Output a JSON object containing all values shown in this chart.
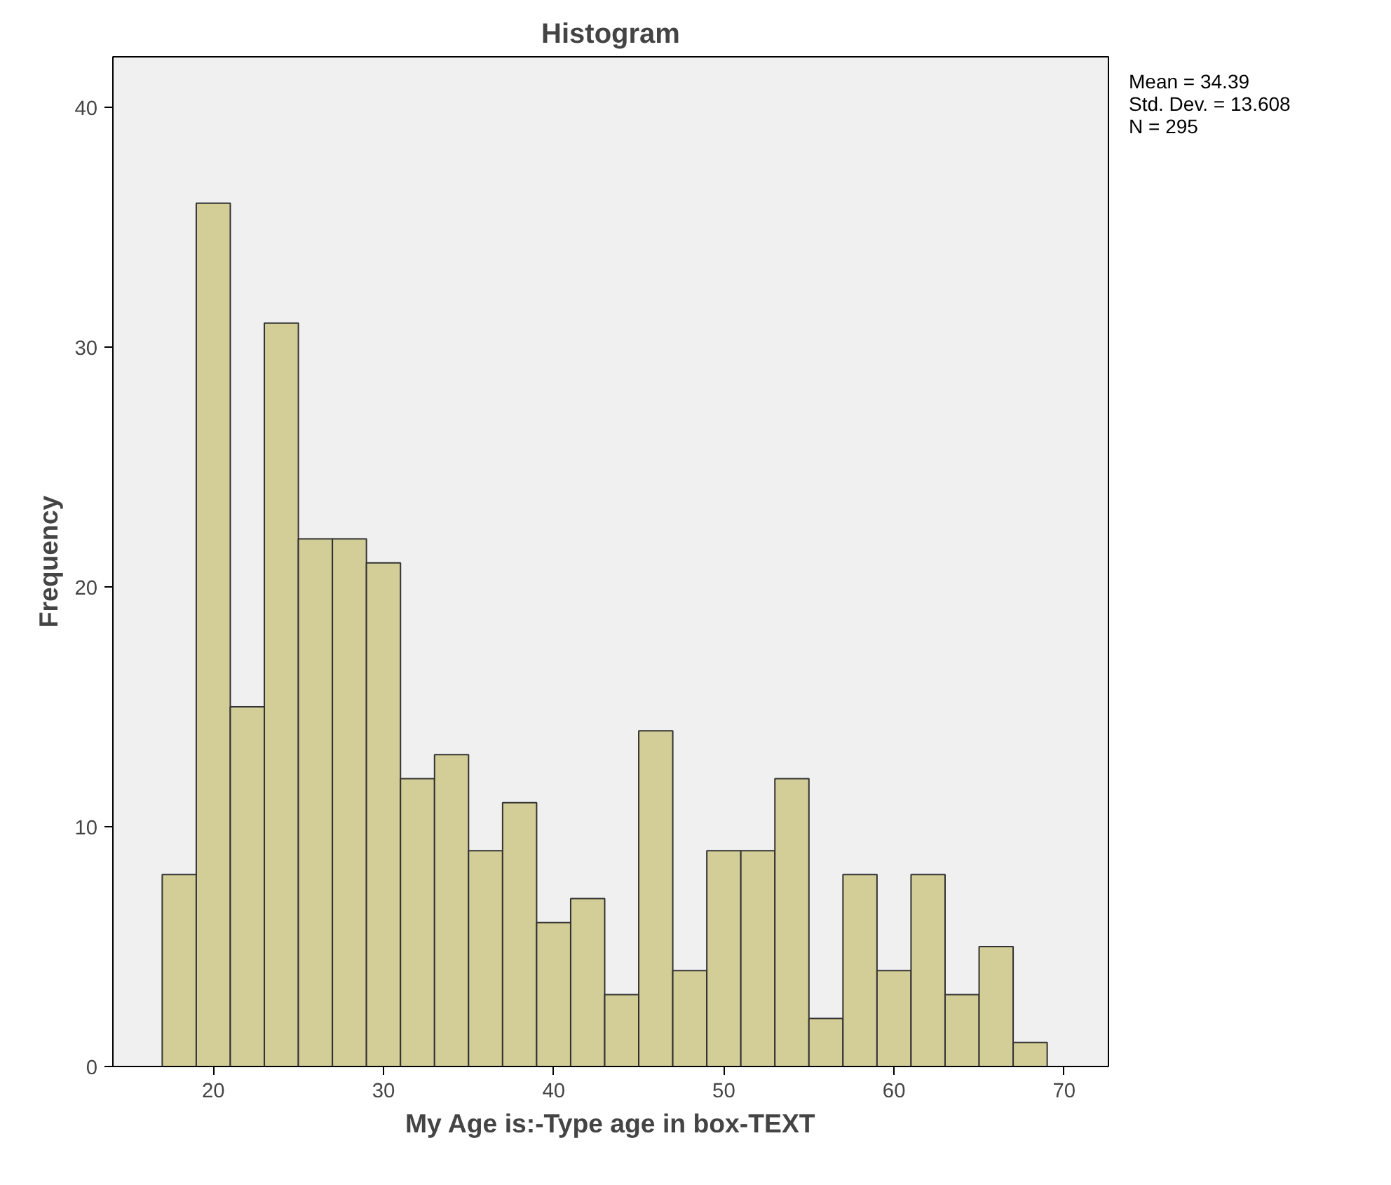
{
  "chart_data": {
    "type": "histogram",
    "title": "Histogram",
    "xlabel": "My Age is:-Type age in box-TEXT",
    "ylabel": "Frequency",
    "bins": [
      17,
      19,
      21,
      23,
      25,
      27,
      29,
      31,
      33,
      35,
      37,
      39,
      41,
      43,
      45,
      47,
      49,
      51,
      53,
      55,
      57,
      59,
      61,
      63,
      65,
      67,
      69
    ],
    "values": [
      8,
      36,
      15,
      31,
      22,
      22,
      21,
      12,
      13,
      9,
      11,
      6,
      7,
      3,
      14,
      4,
      9,
      9,
      12,
      2,
      8,
      4,
      8,
      3,
      5,
      1
    ],
    "color": "#d3ce97",
    "xlim": [
      14.1,
      72.6
    ],
    "ylim": [
      0,
      42.1
    ],
    "xticks": [
      20,
      30,
      40,
      50,
      60,
      70
    ],
    "yticks": [
      0,
      10,
      20,
      30,
      40
    ],
    "grid": false,
    "annotations": [
      "Mean = 34.39",
      "Std. Dev. = 13.608",
      "N = 295"
    ]
  }
}
